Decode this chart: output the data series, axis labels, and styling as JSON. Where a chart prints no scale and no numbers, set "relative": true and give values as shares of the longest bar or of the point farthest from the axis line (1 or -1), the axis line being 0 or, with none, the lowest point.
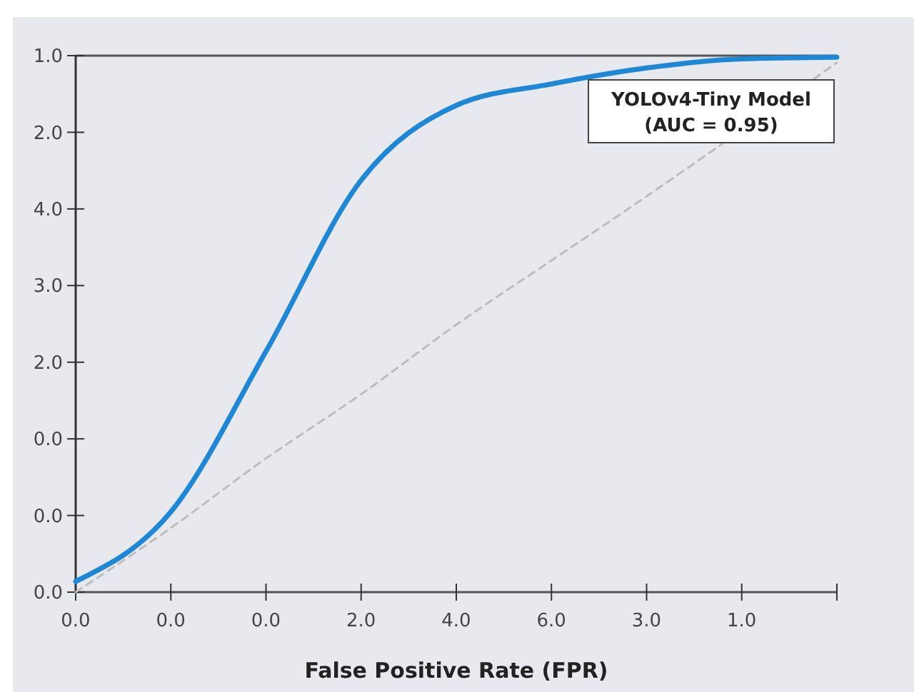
{
  "chart_data": {
    "type": "line",
    "xlabel": "False Positive Rate (FPR)",
    "relative": true,
    "categories": [
      "0.0",
      "0.0",
      "0.0",
      "2.0",
      "4.0",
      "6.0",
      "3.0",
      "1.0",
      null
    ],
    "series": [
      {
        "color": "#1e88d6",
        "line_style": "solid",
        "values": [
          0.02,
          0.15,
          0.45,
          0.77,
          0.91,
          0.95,
          0.98,
          0.997,
          1
        ]
      },
      {
        "color": "#bdbdbd",
        "line_style": "dashed",
        "values": [
          0,
          0.12,
          0.25,
          0.37,
          0.5,
          0.62,
          0.74,
          null,
          0.99
        ]
      }
    ],
    "annotations": [
      "0.0",
      "0.0",
      "0.0",
      "2.0",
      "3.0",
      "4.0",
      "2.0",
      "1.0",
      "YOLOv4-Tiny Model",
      "(AUC = 0.95)"
    ],
    "grid": false,
    "marker": "none"
  }
}
